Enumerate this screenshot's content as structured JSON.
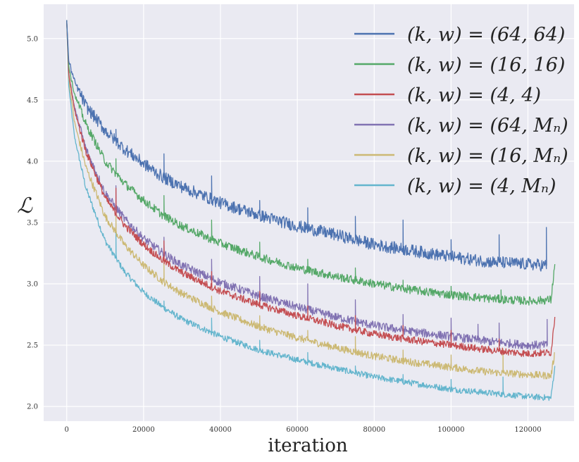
{
  "chart_data": {
    "type": "line",
    "title": "",
    "xlabel": "iteration",
    "ylabel": "ℒ",
    "xlim": [
      -6000,
      132000
    ],
    "ylim": [
      1.88,
      5.28
    ],
    "grid": true,
    "legend_position": "top-right",
    "x_ticks": [
      0,
      20000,
      40000,
      60000,
      80000,
      100000,
      120000
    ],
    "x_tick_labels": [
      "0",
      "20000",
      "40000",
      "60000",
      "80000",
      "100000",
      "120000"
    ],
    "y_ticks": [
      2.0,
      2.5,
      3.0,
      3.5,
      4.0,
      4.5,
      5.0
    ],
    "y_tick_labels": [
      "2.0",
      "2.5",
      "3.0",
      "3.5",
      "4.0",
      "4.5",
      "5.0"
    ],
    "series": [
      {
        "name": "(k, w) = (64, 64)",
        "color": "#4c72b0",
        "noise": 0.05,
        "x": [
          0,
          500,
          2000,
          5000,
          10000,
          15000,
          20000,
          25000,
          30000,
          40000,
          50000,
          60000,
          70000,
          80000,
          90000,
          100000,
          110000,
          120000,
          124800
        ],
        "values": [
          5.15,
          4.82,
          4.65,
          4.45,
          4.25,
          4.1,
          3.98,
          3.87,
          3.79,
          3.66,
          3.56,
          3.47,
          3.4,
          3.32,
          3.27,
          3.22,
          3.18,
          3.16,
          3.15
        ],
        "spikes": [
          [
            12800,
            4.26
          ],
          [
            25300,
            4.06
          ],
          [
            37700,
            3.88
          ],
          [
            50200,
            3.68
          ],
          [
            62700,
            3.62
          ],
          [
            75100,
            3.55
          ],
          [
            87500,
            3.52
          ],
          [
            100000,
            3.36
          ],
          [
            112500,
            3.4
          ],
          [
            124800,
            3.46
          ]
        ]
      },
      {
        "name": "(k, w) = (16, 16)",
        "color": "#55a868",
        "noise": 0.035,
        "x": [
          0,
          500,
          2000,
          5000,
          10000,
          15000,
          20000,
          25000,
          30000,
          40000,
          50000,
          60000,
          70000,
          80000,
          90000,
          100000,
          110000,
          120000,
          126000,
          127000
        ],
        "values": [
          5.15,
          4.78,
          4.55,
          4.3,
          4.0,
          3.82,
          3.68,
          3.56,
          3.47,
          3.33,
          3.22,
          3.13,
          3.06,
          3.0,
          2.95,
          2.91,
          2.88,
          2.86,
          2.87,
          3.16
        ],
        "spikes": [
          [
            12800,
            4.02
          ],
          [
            25300,
            3.72
          ],
          [
            37700,
            3.52
          ],
          [
            50200,
            3.34
          ],
          [
            62700,
            3.2
          ],
          [
            75100,
            3.13
          ],
          [
            87500,
            3.03
          ],
          [
            100000,
            2.98
          ],
          [
            113000,
            2.95
          ]
        ]
      },
      {
        "name": "(k, w) = (4, 4)",
        "color": "#c44e52",
        "noise": 0.03,
        "x": [
          0,
          500,
          2000,
          5000,
          10000,
          15000,
          20000,
          25000,
          30000,
          40000,
          50000,
          60000,
          70000,
          80000,
          90000,
          100000,
          110000,
          120000,
          126000,
          127000
        ],
        "values": [
          5.15,
          4.72,
          4.42,
          4.08,
          3.7,
          3.48,
          3.32,
          3.19,
          3.09,
          2.94,
          2.83,
          2.74,
          2.66,
          2.59,
          2.54,
          2.5,
          2.46,
          2.43,
          2.44,
          2.73
        ],
        "spikes": [
          [
            12800,
            3.78
          ],
          [
            25300,
            3.35
          ],
          [
            37700,
            3.1
          ],
          [
            50200,
            2.94
          ],
          [
            62700,
            2.82
          ],
          [
            75100,
            2.74
          ],
          [
            87500,
            2.66
          ],
          [
            100000,
            2.62
          ],
          [
            112500,
            2.55
          ]
        ]
      },
      {
        "name": "(k, w) = (64, Mₙ)",
        "color": "#8172b2",
        "noise": 0.035,
        "x": [
          0,
          500,
          2000,
          5000,
          10000,
          15000,
          20000,
          25000,
          30000,
          40000,
          50000,
          60000,
          70000,
          80000,
          90000,
          100000,
          110000,
          120000,
          125000
        ],
        "values": [
          5.15,
          4.72,
          4.44,
          4.1,
          3.74,
          3.53,
          3.37,
          3.25,
          3.15,
          3.01,
          2.9,
          2.81,
          2.73,
          2.66,
          2.61,
          2.57,
          2.53,
          2.5,
          2.5
        ],
        "spikes": [
          [
            12800,
            3.8
          ],
          [
            25300,
            3.38
          ],
          [
            37700,
            3.2
          ],
          [
            50200,
            3.06
          ],
          [
            62700,
            3.0
          ],
          [
            75100,
            2.87
          ],
          [
            87500,
            2.75
          ],
          [
            100000,
            2.72
          ],
          [
            107000,
            2.67
          ],
          [
            112500,
            2.68
          ],
          [
            125000,
            2.71
          ]
        ]
      },
      {
        "name": "(k, w) = (16, Mₙ)",
        "color": "#ccb974",
        "noise": 0.03,
        "x": [
          0,
          500,
          2000,
          5000,
          10000,
          15000,
          20000,
          25000,
          30000,
          40000,
          50000,
          60000,
          70000,
          80000,
          90000,
          100000,
          110000,
          120000,
          126000,
          127000
        ],
        "values": [
          5.15,
          4.68,
          4.32,
          3.95,
          3.55,
          3.32,
          3.15,
          3.02,
          2.92,
          2.77,
          2.65,
          2.56,
          2.48,
          2.41,
          2.36,
          2.32,
          2.28,
          2.26,
          2.25,
          2.44
        ],
        "spikes": [
          [
            12800,
            3.55
          ],
          [
            25300,
            3.18
          ],
          [
            37700,
            2.9
          ],
          [
            50200,
            2.74
          ],
          [
            62700,
            2.62
          ],
          [
            75100,
            2.57
          ],
          [
            87500,
            2.46
          ],
          [
            100000,
            2.42
          ],
          [
            113500,
            2.47
          ]
        ]
      },
      {
        "name": "(k, w) = (4, Mₙ)",
        "color": "#64b5cd",
        "noise": 0.025,
        "x": [
          0,
          500,
          2000,
          5000,
          10000,
          15000,
          20000,
          25000,
          30000,
          40000,
          50000,
          60000,
          70000,
          80000,
          90000,
          100000,
          110000,
          120000,
          126000,
          127000
        ],
        "values": [
          5.15,
          4.62,
          4.2,
          3.78,
          3.35,
          3.1,
          2.93,
          2.81,
          2.71,
          2.57,
          2.46,
          2.38,
          2.31,
          2.24,
          2.19,
          2.14,
          2.11,
          2.08,
          2.07,
          2.33
        ],
        "spikes": [
          [
            12800,
            3.42
          ],
          [
            25300,
            2.86
          ],
          [
            37700,
            2.72
          ],
          [
            50200,
            2.54
          ],
          [
            62700,
            2.44
          ],
          [
            75100,
            2.33
          ],
          [
            87500,
            2.26
          ],
          [
            100000,
            2.22
          ],
          [
            113500,
            2.24
          ]
        ]
      }
    ]
  }
}
